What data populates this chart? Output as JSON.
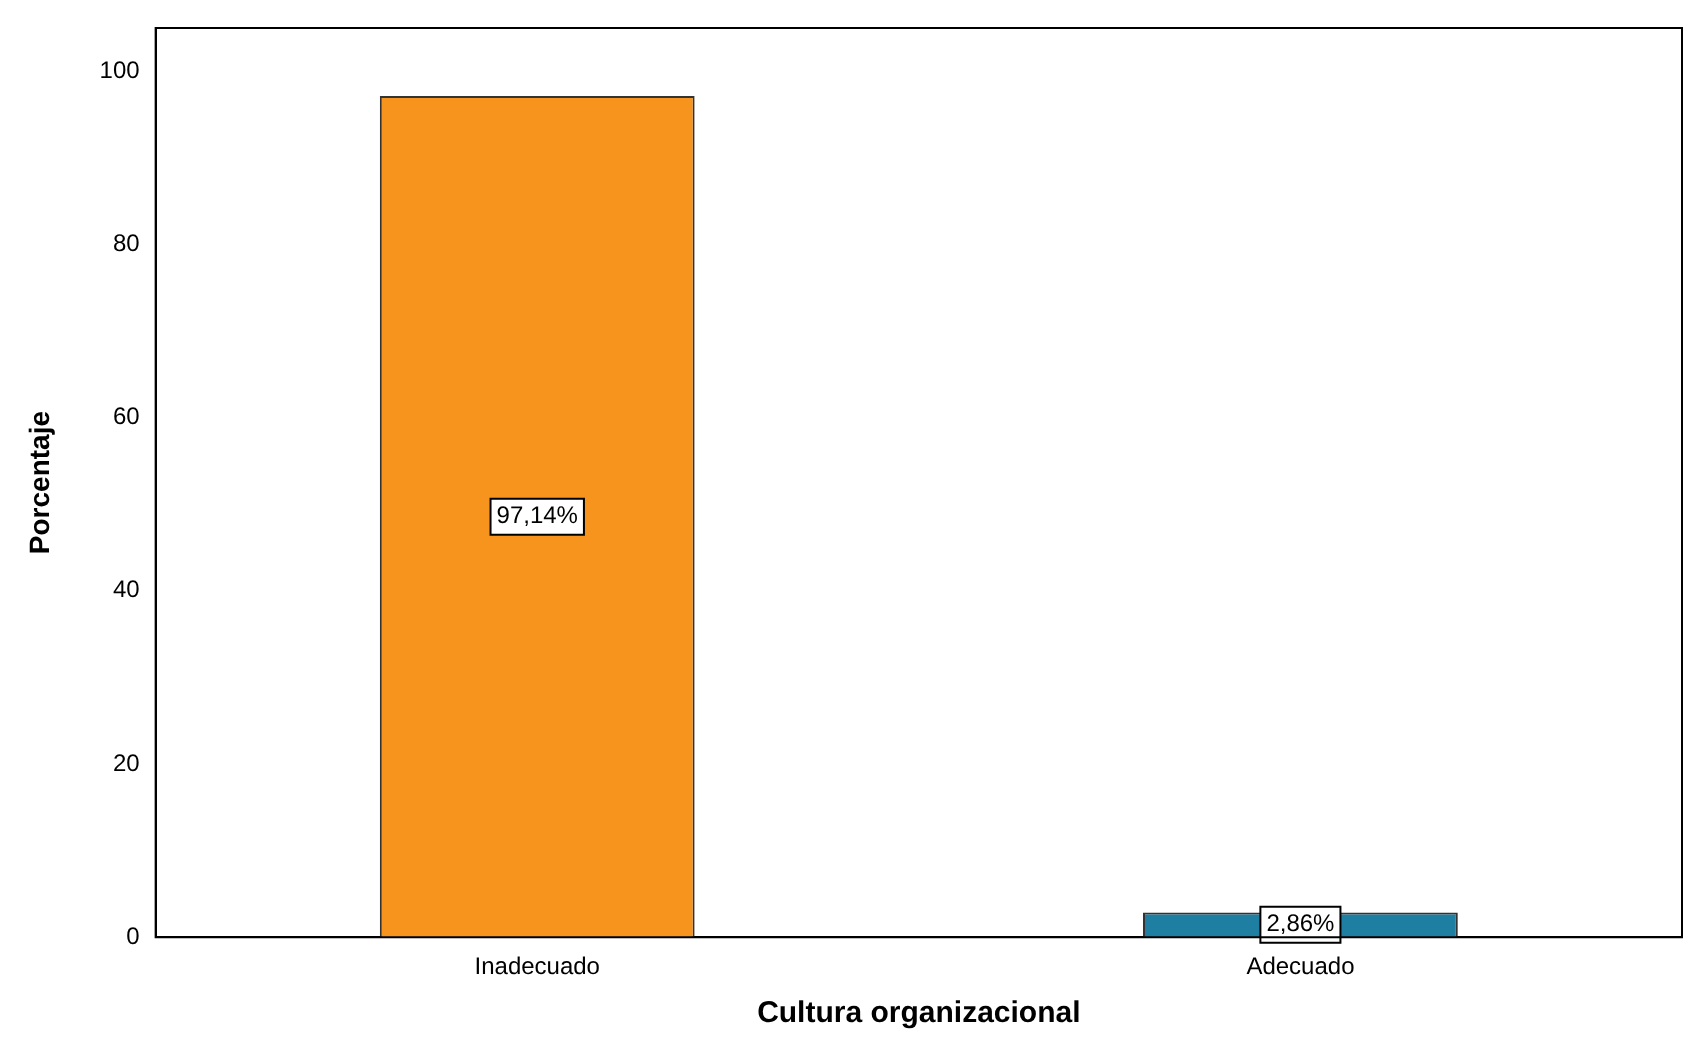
{
  "chart_data": {
    "type": "bar",
    "xlabel": "Cultura organizacional",
    "ylabel": "Porcentaje",
    "categories": [
      "Inadecuado",
      "Adecuado"
    ],
    "values": [
      97.14,
      2.86
    ],
    "colors": [
      "#f7941d",
      "#1f7fa2"
    ],
    "value_labels": [
      "97,14%",
      "2,86%"
    ],
    "ylim": [
      0,
      105
    ],
    "yticks": [
      0,
      20,
      40,
      60,
      80,
      100
    ],
    "grid": false,
    "legend": false
  }
}
